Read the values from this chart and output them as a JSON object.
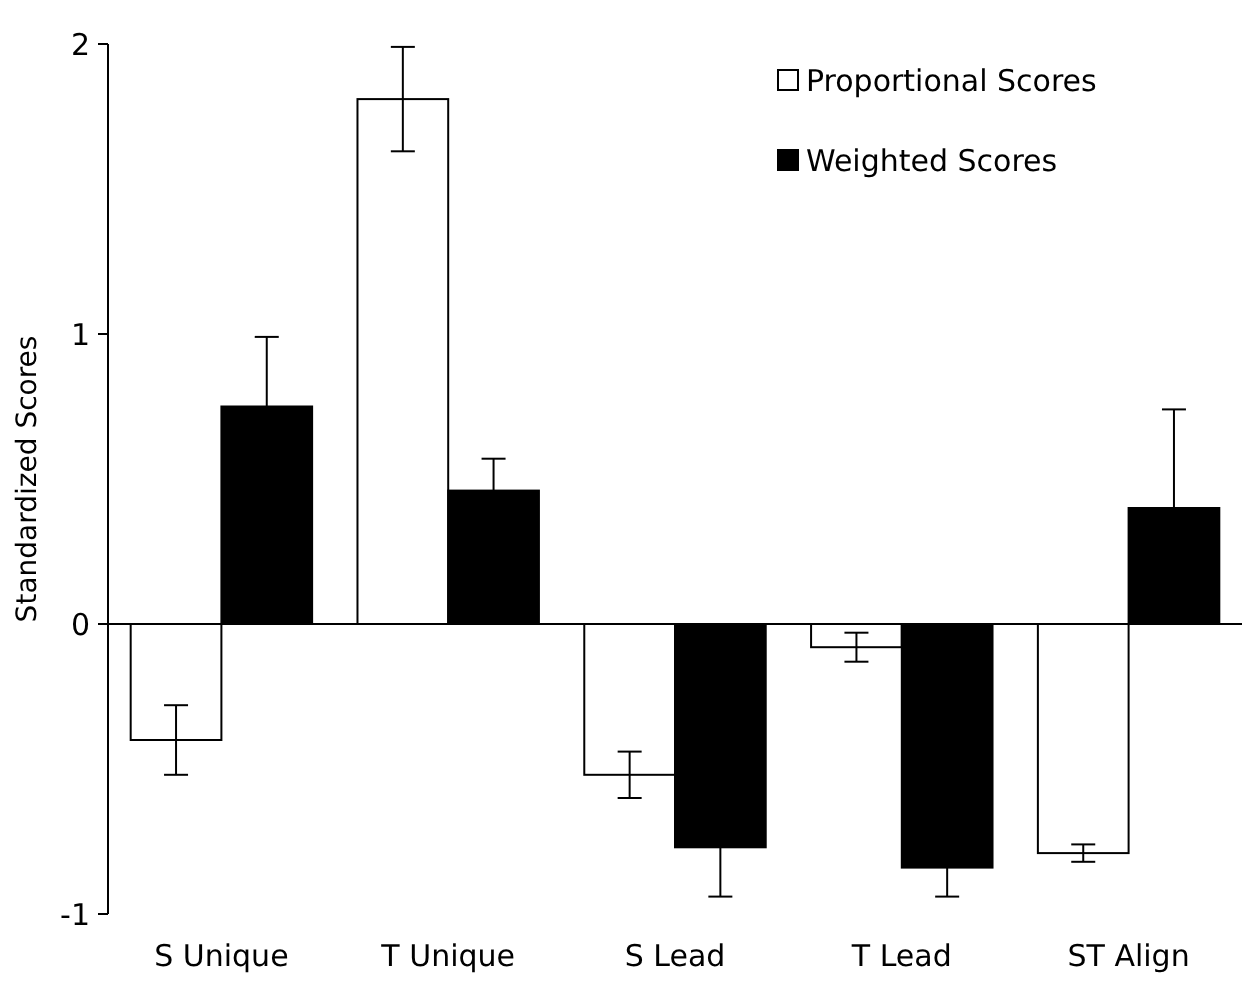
{
  "chart_data": {
    "type": "bar",
    "ylabel": "Standardized Scores",
    "categories": [
      "S Unique",
      "T Unique",
      "S Lead",
      "T Lead",
      "ST Align"
    ],
    "series": [
      {
        "name": "Proportional Scores",
        "color": "#ffffff",
        "values": [
          -0.4,
          1.81,
          -0.52,
          -0.08,
          -0.79
        ],
        "errors": [
          0.12,
          0.18,
          0.08,
          0.05,
          0.03
        ]
      },
      {
        "name": "Weighted Scores",
        "color": "#000000",
        "values": [
          0.75,
          0.46,
          -0.77,
          -0.84,
          0.4
        ],
        "errors": [
          0.24,
          0.11,
          0.17,
          0.1,
          0.34
        ]
      }
    ],
    "ylim": [
      -1,
      2
    ],
    "yticks": [
      -1,
      0,
      1,
      2
    ],
    "legend": "top right"
  }
}
